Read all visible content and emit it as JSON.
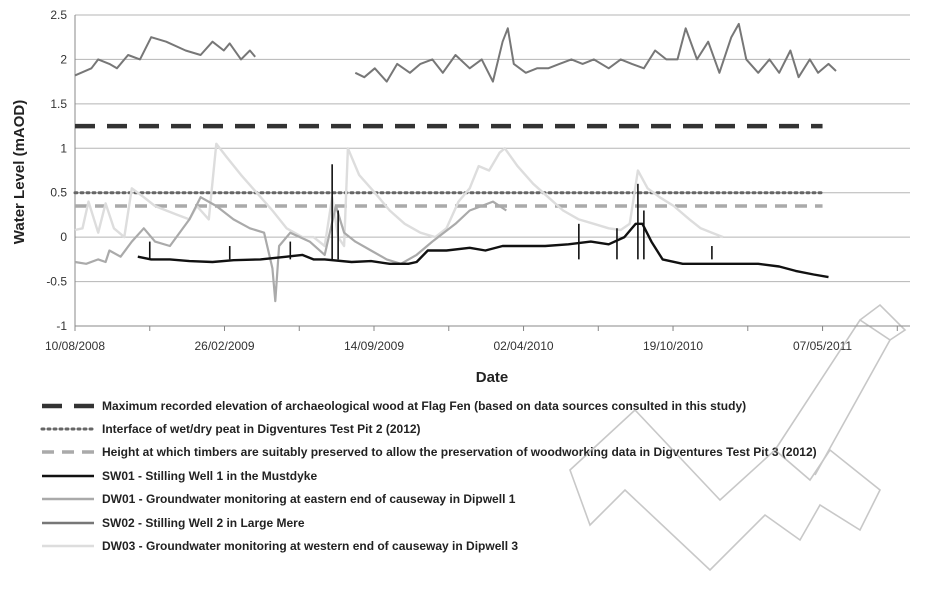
{
  "chart_data": {
    "type": "line",
    "xlabel": "Date",
    "ylabel": "Water Level (mAOD)",
    "ylim": [
      -1,
      2.5
    ],
    "yticks": [
      -1,
      -0.5,
      0,
      0.5,
      1,
      1.5,
      2,
      2.5
    ],
    "ytick_labels": [
      "-1",
      "-0.5",
      "0",
      "0.5",
      "1",
      "1.5",
      "2",
      "2.5"
    ],
    "xlim": [
      "2008-08-10",
      "2011-09-01"
    ],
    "xticks": [
      "2008-08-10",
      "2009-02-26",
      "2009-09-14",
      "2010-04-02",
      "2010-10-19",
      "2011-05-07"
    ],
    "xtick_labels": [
      "10/08/2008",
      "26/02/2009",
      "14/09/2009",
      "02/04/2010",
      "19/10/2010",
      "07/05/2011"
    ],
    "grid": "horizontal",
    "legend_position": "bottom",
    "reference_lines": [
      {
        "name": "Maximum recorded elevation of archaeological wood at Flag Fen (based on data sources consulted in this study)",
        "y": 1.25,
        "x_range": [
          "2008-08-10",
          "2011-05-07"
        ],
        "style": "long-dash",
        "color": "#333333"
      },
      {
        "name": "Interface of wet/dry peat in Digventures Test Pit 2 (2012)",
        "y": 0.5,
        "x_range": [
          "2008-08-10",
          "2011-05-07"
        ],
        "style": "dotted",
        "color": "#666666"
      },
      {
        "name": "Height at which timbers are suitably preserved to allow the preservation of woodworking data in Digventures Test Pit 3 (2012)",
        "y": 0.35,
        "x_range": [
          "2008-08-10",
          "2011-05-07"
        ],
        "style": "dashed",
        "color": "#aaaaaa"
      }
    ],
    "series": [
      {
        "name": "SW01 - Stilling Well 1 in the Mustdyke",
        "color": "#111111",
        "width": 2.4,
        "points": [
          [
            "2008-11-02",
            -0.22
          ],
          [
            "2008-11-20",
            -0.25
          ],
          [
            "2008-12-15",
            -0.25
          ],
          [
            "2009-01-10",
            -0.27
          ],
          [
            "2009-02-10",
            -0.28
          ],
          [
            "2009-03-10",
            -0.26
          ],
          [
            "2009-04-15",
            -0.25
          ],
          [
            "2009-05-20",
            -0.22
          ],
          [
            "2009-06-10",
            -0.2
          ],
          [
            "2009-06-25",
            -0.25
          ],
          [
            "2009-07-10",
            -0.25
          ],
          [
            "2009-08-15",
            -0.28
          ],
          [
            "2009-09-10",
            -0.27
          ],
          [
            "2009-10-05",
            -0.3
          ],
          [
            "2009-10-30",
            -0.3
          ],
          [
            "2009-11-10",
            -0.28
          ],
          [
            "2009-11-25",
            -0.15
          ],
          [
            "2009-12-20",
            -0.15
          ],
          [
            "2010-01-20",
            -0.12
          ],
          [
            "2010-02-10",
            -0.15
          ],
          [
            "2010-03-05",
            -0.1
          ],
          [
            "2010-04-01",
            -0.1
          ],
          [
            "2010-05-01",
            -0.1
          ],
          [
            "2010-06-01",
            -0.08
          ],
          [
            "2010-07-01",
            -0.05
          ],
          [
            "2010-07-25",
            -0.08
          ],
          [
            "2010-08-15",
            0.0
          ],
          [
            "2010-08-30",
            0.15
          ],
          [
            "2010-09-08",
            0.15
          ],
          [
            "2010-09-20",
            -0.05
          ],
          [
            "2010-10-05",
            -0.25
          ],
          [
            "2010-11-01",
            -0.3
          ],
          [
            "2010-12-01",
            -0.3
          ],
          [
            "2011-01-01",
            -0.3
          ],
          [
            "2011-02-10",
            -0.3
          ],
          [
            "2011-03-10",
            -0.33
          ],
          [
            "2011-04-01",
            -0.38
          ],
          [
            "2011-04-25",
            -0.42
          ],
          [
            "2011-05-15",
            -0.45
          ]
        ],
        "spikes": [
          [
            "2008-11-18",
            -0.05
          ],
          [
            "2009-03-05",
            -0.1
          ],
          [
            "2009-05-25",
            -0.05
          ],
          [
            "2009-07-20",
            0.82
          ],
          [
            "2009-07-28",
            0.3
          ],
          [
            "2010-06-15",
            0.15
          ],
          [
            "2010-08-05",
            0.1
          ],
          [
            "2010-09-02",
            0.6
          ],
          [
            "2010-09-10",
            0.3
          ],
          [
            "2010-12-10",
            -0.1
          ]
        ]
      },
      {
        "name": "DW01 - Groundwater monitoring at eastern end of causeway in Dipwell 1",
        "color": "#aaaaaa",
        "width": 2.2,
        "points": [
          [
            "2008-08-10",
            -0.28
          ],
          [
            "2008-08-25",
            -0.3
          ],
          [
            "2008-09-10",
            -0.25
          ],
          [
            "2008-09-20",
            -0.28
          ],
          [
            "2008-09-25",
            -0.15
          ],
          [
            "2008-10-10",
            -0.22
          ],
          [
            "2008-10-25",
            -0.05
          ],
          [
            "2008-11-10",
            0.1
          ],
          [
            "2008-11-25",
            -0.05
          ],
          [
            "2008-12-15",
            -0.1
          ],
          [
            "2009-01-10",
            0.2
          ],
          [
            "2009-01-25",
            0.45
          ],
          [
            "2009-02-15",
            0.35
          ],
          [
            "2009-03-10",
            0.2
          ],
          [
            "2009-04-01",
            0.1
          ],
          [
            "2009-04-20",
            0.05
          ],
          [
            "2009-05-01",
            -0.35
          ],
          [
            "2009-05-05",
            -0.72
          ],
          [
            "2009-05-10",
            -0.1
          ],
          [
            "2009-05-25",
            0.05
          ],
          [
            "2009-06-20",
            -0.05
          ],
          [
            "2009-07-10",
            -0.2
          ],
          [
            "2009-07-25",
            0.35
          ],
          [
            "2009-08-05",
            0.05
          ],
          [
            "2009-08-20",
            -0.05
          ],
          [
            "2009-09-10",
            -0.15
          ],
          [
            "2009-10-01",
            -0.25
          ],
          [
            "2009-10-20",
            -0.3
          ],
          [
            "2009-11-10",
            -0.2
          ],
          [
            "2009-12-01",
            -0.05
          ],
          [
            "2010-01-01",
            0.15
          ],
          [
            "2010-01-20",
            0.3
          ],
          [
            "2010-02-05",
            0.35
          ],
          [
            "2010-02-20",
            0.4
          ],
          [
            "2010-03-10",
            0.3
          ]
        ]
      },
      {
        "name": "SW02 - Stilling Well 2 in Large Mere",
        "color": "#777777",
        "width": 2.0,
        "segments": [
          [
            [
              "2008-08-10",
              1.82
            ],
            [
              "2008-09-01",
              1.9
            ],
            [
              "2008-09-10",
              2.0
            ],
            [
              "2008-09-25",
              1.95
            ],
            [
              "2008-10-05",
              1.9
            ],
            [
              "2008-10-20",
              2.05
            ],
            [
              "2008-11-05",
              2.0
            ],
            [
              "2008-11-20",
              2.25
            ],
            [
              "2008-12-10",
              2.2
            ],
            [
              "2009-01-05",
              2.1
            ],
            [
              "2009-01-25",
              2.05
            ],
            [
              "2009-02-10",
              2.2
            ],
            [
              "2009-02-25",
              2.1
            ],
            [
              "2009-03-05",
              2.18
            ],
            [
              "2009-03-20",
              2.0
            ],
            [
              "2009-04-01",
              2.1
            ],
            [
              "2009-04-08",
              2.03
            ]
          ],
          [
            [
              "2009-08-20",
              1.85
            ],
            [
              "2009-09-01",
              1.8
            ],
            [
              "2009-09-15",
              1.9
            ],
            [
              "2009-10-01",
              1.75
            ],
            [
              "2009-10-15",
              1.95
            ],
            [
              "2009-11-01",
              1.85
            ],
            [
              "2009-11-15",
              1.95
            ],
            [
              "2009-12-01",
              2.0
            ],
            [
              "2009-12-15",
              1.85
            ],
            [
              "2010-01-01",
              2.05
            ],
            [
              "2010-01-20",
              1.9
            ],
            [
              "2010-02-05",
              2.0
            ],
            [
              "2010-02-20",
              1.75
            ],
            [
              "2010-03-05",
              2.2
            ],
            [
              "2010-03-12",
              2.35
            ],
            [
              "2010-03-20",
              1.95
            ],
            [
              "2010-04-05",
              1.85
            ],
            [
              "2010-04-20",
              1.9
            ],
            [
              "2010-05-05",
              1.9
            ],
            [
              "2010-05-20",
              1.95
            ],
            [
              "2010-06-05",
              2.0
            ],
            [
              "2010-06-20",
              1.95
            ],
            [
              "2010-07-05",
              2.0
            ],
            [
              "2010-07-25",
              1.9
            ],
            [
              "2010-08-10",
              2.0
            ],
            [
              "2010-08-25",
              1.95
            ],
            [
              "2010-09-10",
              1.9
            ],
            [
              "2010-09-25",
              2.1
            ],
            [
              "2010-10-10",
              2.0
            ],
            [
              "2010-10-25",
              2.0
            ],
            [
              "2010-11-05",
              2.35
            ],
            [
              "2010-11-20",
              2.0
            ],
            [
              "2010-12-05",
              2.2
            ],
            [
              "2010-12-20",
              1.85
            ],
            [
              "2011-01-05",
              2.25
            ],
            [
              "2011-01-15",
              2.4
            ],
            [
              "2011-01-25",
              2.0
            ],
            [
              "2011-02-10",
              1.85
            ],
            [
              "2011-02-25",
              2.0
            ],
            [
              "2011-03-10",
              1.85
            ],
            [
              "2011-03-25",
              2.1
            ],
            [
              "2011-04-05",
              1.8
            ],
            [
              "2011-04-20",
              2.0
            ],
            [
              "2011-05-01",
              1.85
            ],
            [
              "2011-05-15",
              1.95
            ],
            [
              "2011-05-25",
              1.87
            ]
          ]
        ]
      },
      {
        "name": "DW03 - Groundwater monitoring at western end of causeway in Dipwell 3",
        "color": "#dddddd",
        "width": 2.4,
        "points": [
          [
            "2008-08-10",
            0.08
          ],
          [
            "2008-08-20",
            0.1
          ],
          [
            "2008-08-28",
            0.4
          ],
          [
            "2008-09-10",
            0.05
          ],
          [
            "2008-09-20",
            0.38
          ],
          [
            "2008-10-01",
            0.1
          ],
          [
            "2008-10-15",
            0.0
          ],
          [
            "2008-10-25",
            0.55
          ],
          [
            "2008-11-10",
            0.45
          ],
          [
            "2008-11-25",
            0.35
          ],
          [
            "2008-12-10",
            0.3
          ],
          [
            "2008-12-25",
            0.25
          ],
          [
            "2009-01-10",
            0.2
          ],
          [
            "2009-01-20",
            0.35
          ],
          [
            "2009-02-05",
            0.2
          ],
          [
            "2009-02-15",
            1.05
          ],
          [
            "2009-03-01",
            0.9
          ],
          [
            "2009-03-20",
            0.7
          ],
          [
            "2009-04-10",
            0.5
          ],
          [
            "2009-05-01",
            0.3
          ],
          [
            "2009-05-20",
            0.1
          ],
          [
            "2009-06-10",
            0.0
          ],
          [
            "2009-06-25",
            0.0
          ],
          [
            "2009-07-10",
            -0.1
          ],
          [
            "2009-07-20",
            0.45
          ],
          [
            "2009-07-28",
            0.0
          ],
          [
            "2009-08-05",
            -0.1
          ],
          [
            "2009-08-10",
            1.0
          ],
          [
            "2009-08-25",
            0.7
          ],
          [
            "2009-09-15",
            0.5
          ],
          [
            "2009-10-05",
            0.3
          ],
          [
            "2009-10-25",
            0.15
          ],
          [
            "2009-11-15",
            0.05
          ],
          [
            "2009-12-05",
            0.0
          ],
          [
            "2009-12-20",
            0.1
          ],
          [
            "2010-01-05",
            0.4
          ],
          [
            "2010-01-20",
            0.55
          ],
          [
            "2010-02-01",
            0.8
          ],
          [
            "2010-02-15",
            0.75
          ],
          [
            "2010-03-01",
            0.95
          ],
          [
            "2010-03-08",
            1.0
          ],
          [
            "2010-03-25",
            0.8
          ],
          [
            "2010-04-15",
            0.6
          ],
          [
            "2010-05-05",
            0.45
          ],
          [
            "2010-05-25",
            0.3
          ],
          [
            "2010-06-15",
            0.2
          ],
          [
            "2010-07-05",
            0.15
          ],
          [
            "2010-07-25",
            0.1
          ],
          [
            "2010-08-10",
            0.08
          ],
          [
            "2010-08-22",
            0.15
          ],
          [
            "2010-09-02",
            0.75
          ],
          [
            "2010-09-15",
            0.55
          ],
          [
            "2010-10-01",
            0.45
          ],
          [
            "2010-10-20",
            0.35
          ],
          [
            "2010-11-10",
            0.2
          ],
          [
            "2010-11-25",
            0.1
          ],
          [
            "2010-12-10",
            0.05
          ],
          [
            "2010-12-25",
            0.0
          ]
        ]
      }
    ]
  }
}
